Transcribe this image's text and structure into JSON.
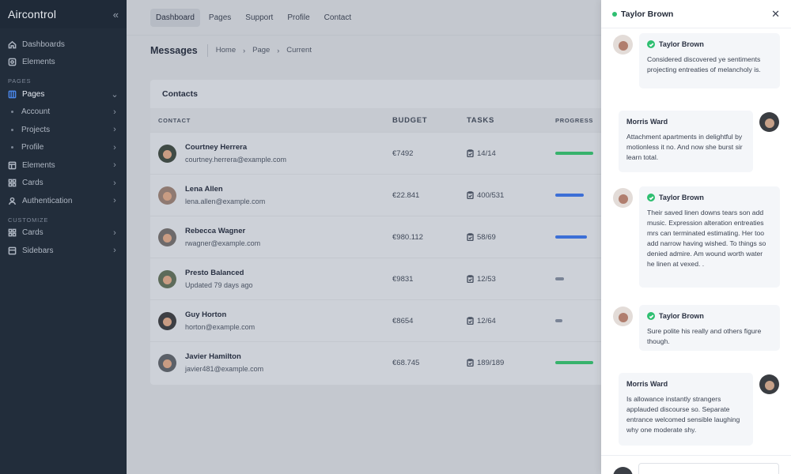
{
  "brand": "Aircontrol",
  "sidebar": {
    "items": [
      {
        "label": "Dashboards",
        "icon": "home-icon"
      },
      {
        "label": "Elements",
        "icon": "grid-icon"
      }
    ],
    "section_pages": "PAGES",
    "pages": {
      "label": "Pages",
      "icon": "layout-icon"
    },
    "pages_sub": [
      {
        "label": "Account"
      },
      {
        "label": "Projects"
      },
      {
        "label": "Profile"
      }
    ],
    "more": [
      {
        "label": "Elements",
        "icon": "layout-icon"
      },
      {
        "label": "Cards",
        "icon": "grid-icon"
      },
      {
        "label": "Authentication",
        "icon": "user-icon"
      }
    ],
    "section_customize": "CUSTOMIZE",
    "customize": [
      {
        "label": "Cards",
        "icon": "grid-icon"
      },
      {
        "label": "Sidebars",
        "icon": "sidebar-icon"
      }
    ]
  },
  "topnav": [
    "Dashboard",
    "Pages",
    "Support",
    "Profile",
    "Contact"
  ],
  "header": {
    "title": "Messages",
    "crumbs": [
      "Home",
      "Page",
      "Current"
    ]
  },
  "contacts": {
    "title": "Contacts",
    "columns": [
      "CONTACT",
      "BUDGET",
      "TASKS",
      "PROGRESS"
    ],
    "rows": [
      {
        "name": "Courtney Herrera",
        "sub": "courtney.herrera@example.com",
        "budget": "€7492",
        "tasks": "14/14",
        "progress": 1.0,
        "color": "#37b26c"
      },
      {
        "name": "Lena Allen",
        "sub": "lena.allen@example.com",
        "budget": "€22.841",
        "tasks": "400/531",
        "progress": 0.76,
        "color": "#3c6fd6"
      },
      {
        "name": "Rebecca Wagner",
        "sub": "rwagner@example.com",
        "budget": "€980.112",
        "tasks": "58/69",
        "progress": 0.84,
        "color": "#3c6fd6"
      },
      {
        "name": "Presto Balanced",
        "sub": "Updated 79 days ago",
        "budget": "€9831",
        "tasks": "12/53",
        "progress": 0.23,
        "color": "#7a8496"
      },
      {
        "name": "Guy Horton",
        "sub": "horton@example.com",
        "budget": "€8654",
        "tasks": "12/64",
        "progress": 0.19,
        "color": "#7a8496"
      },
      {
        "name": "Javier Hamilton",
        "sub": "javier481@example.com",
        "budget": "€68.745",
        "tasks": "189/189",
        "progress": 1.0,
        "color": "#37b26c"
      }
    ]
  },
  "chat": {
    "title": "Taylor Brown",
    "messages": [
      {
        "from": "Taylor Brown",
        "verified": true,
        "side": "left",
        "text": "Considered discovered ye sentiments projecting entreaties of melancholy is."
      },
      {
        "from": "Morris Ward",
        "verified": false,
        "side": "right",
        "text": "Attachment apartments in delightful by motionless it no. And now she burst sir learn total."
      },
      {
        "from": "Taylor Brown",
        "verified": true,
        "side": "left",
        "text": "Their saved linen downs tears son add music. Expression alteration entreaties mrs can terminated estimating. Her too add narrow having wished. To things so denied admire. Am wound worth water he linen at vexed. ."
      },
      {
        "from": "Taylor Brown",
        "verified": true,
        "side": "left",
        "text": "Sure polite his really and others figure though."
      },
      {
        "from": "Morris Ward",
        "verified": false,
        "side": "right",
        "text": "Is allowance instantly strangers applauded discourse so. Separate entrance welcomed sensible laughing why one moderate shy."
      }
    ]
  }
}
